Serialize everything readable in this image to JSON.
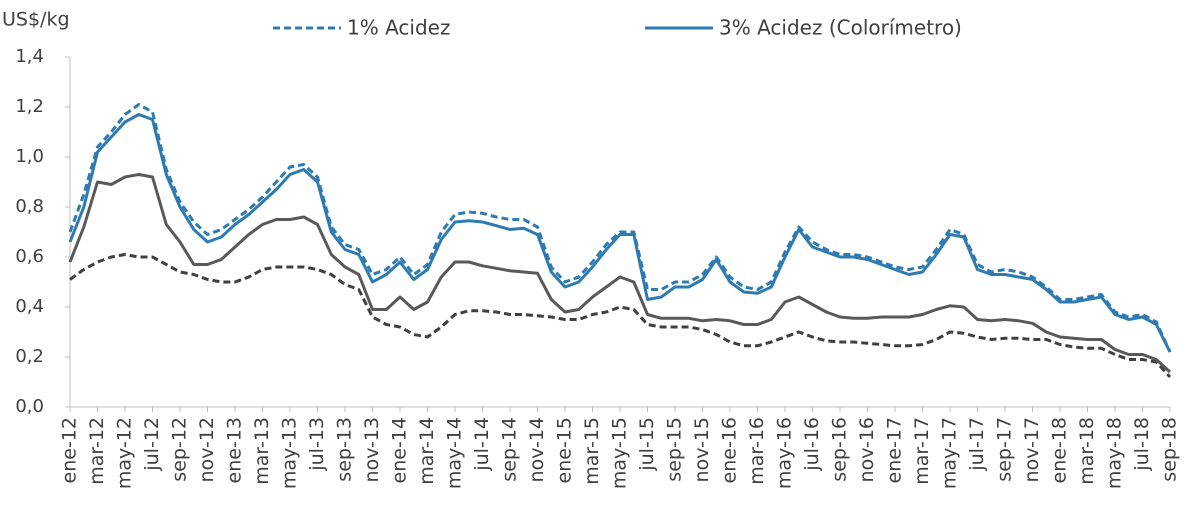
{
  "chart_data": {
    "type": "line",
    "y_label": "US$/kg",
    "categories": [
      "ene-12",
      null,
      "mar-12",
      null,
      "may-12",
      null,
      "jul-12",
      null,
      "sep-12",
      null,
      "nov-12",
      null,
      "ene-13",
      null,
      "mar-13",
      null,
      "may-13",
      null,
      "jul-13",
      null,
      "sep-13",
      null,
      "nov-13",
      null,
      "ene-14",
      null,
      "mar-14",
      null,
      "may-14",
      null,
      "jul-14",
      null,
      "sep-14",
      null,
      "nov-14",
      null,
      "ene-15",
      null,
      "mar-15",
      null,
      "may-15",
      null,
      "jul-15",
      null,
      "sep-15",
      null,
      "nov-15",
      null,
      "ene-16",
      null,
      "mar-16",
      null,
      "may-16",
      null,
      "jul-16",
      null,
      "sep-16",
      null,
      "nov-16",
      null,
      "ene-17",
      null,
      "mar-17",
      null,
      "may-17",
      null,
      "jul-17",
      null,
      "sep-17",
      null,
      "nov-17",
      null,
      "ene-18",
      null,
      "mar-18",
      null,
      "may-18",
      null,
      "jul-18",
      null,
      "sep-18"
    ],
    "series": [
      {
        "name": "1% Acidez",
        "color": "#2e7bb4",
        "dashed": true,
        "values": [
          0.7,
          0.85,
          1.04,
          1.1,
          1.17,
          1.21,
          1.18,
          0.95,
          0.82,
          0.74,
          0.69,
          0.71,
          0.75,
          0.79,
          0.84,
          0.9,
          0.96,
          0.97,
          0.92,
          0.72,
          0.65,
          0.63,
          0.53,
          0.55,
          0.6,
          0.53,
          0.57,
          0.7,
          0.77,
          0.78,
          0.775,
          0.76,
          0.75,
          0.75,
          0.72,
          0.56,
          0.5,
          0.52,
          0.58,
          0.65,
          0.7,
          0.7,
          0.47,
          0.47,
          0.5,
          0.5,
          0.53,
          0.6,
          0.52,
          0.48,
          0.47,
          0.5,
          0.62,
          0.72,
          0.66,
          0.63,
          0.61,
          0.61,
          0.6,
          0.58,
          0.56,
          0.55,
          0.56,
          0.63,
          0.71,
          0.69,
          0.57,
          0.54,
          0.55,
          0.54,
          0.52,
          0.48,
          0.43,
          0.43,
          0.44,
          0.45,
          0.38,
          0.36,
          0.37,
          0.34,
          0.22
        ]
      },
      {
        "name": "3% Acidez (Colorímetro)",
        "color": "#2e7bb4",
        "dashed": false,
        "values": [
          0.66,
          0.8,
          1.02,
          1.08,
          1.14,
          1.17,
          1.15,
          0.93,
          0.8,
          0.71,
          0.66,
          0.68,
          0.73,
          0.77,
          0.82,
          0.87,
          0.93,
          0.95,
          0.9,
          0.7,
          0.63,
          0.61,
          0.5,
          0.53,
          0.58,
          0.51,
          0.55,
          0.67,
          0.74,
          0.745,
          0.74,
          0.725,
          0.71,
          0.715,
          0.69,
          0.54,
          0.48,
          0.5,
          0.56,
          0.63,
          0.69,
          0.69,
          0.43,
          0.44,
          0.48,
          0.48,
          0.51,
          0.59,
          0.5,
          0.46,
          0.455,
          0.48,
          0.6,
          0.71,
          0.64,
          0.62,
          0.6,
          0.6,
          0.59,
          0.57,
          0.55,
          0.53,
          0.54,
          0.61,
          0.69,
          0.68,
          0.55,
          0.53,
          0.53,
          0.52,
          0.51,
          0.47,
          0.42,
          0.42,
          0.43,
          0.44,
          0.37,
          0.35,
          0.36,
          0.33,
          0.22
        ]
      },
      {
        "color": "#404040",
        "dashed": true,
        "values": [
          0.51,
          0.55,
          0.58,
          0.6,
          0.61,
          0.6,
          0.6,
          0.57,
          0.54,
          0.53,
          0.51,
          0.5,
          0.5,
          0.52,
          0.55,
          0.56,
          0.56,
          0.56,
          0.55,
          0.53,
          0.49,
          0.47,
          0.36,
          0.33,
          0.32,
          0.29,
          0.28,
          0.32,
          0.37,
          0.385,
          0.385,
          0.38,
          0.37,
          0.37,
          0.365,
          0.36,
          0.35,
          0.35,
          0.37,
          0.38,
          0.4,
          0.39,
          0.33,
          0.32,
          0.32,
          0.32,
          0.31,
          0.29,
          0.26,
          0.245,
          0.245,
          0.26,
          0.28,
          0.3,
          0.28,
          0.265,
          0.26,
          0.26,
          0.255,
          0.25,
          0.245,
          0.245,
          0.25,
          0.27,
          0.3,
          0.295,
          0.28,
          0.27,
          0.275,
          0.275,
          0.27,
          0.27,
          0.25,
          0.24,
          0.235,
          0.235,
          0.21,
          0.19,
          0.19,
          0.18,
          0.12
        ]
      },
      {
        "color": "#595959",
        "dashed": false,
        "values": [
          0.58,
          0.72,
          0.9,
          0.89,
          0.92,
          0.93,
          0.92,
          0.73,
          0.66,
          0.57,
          0.57,
          0.59,
          0.64,
          0.69,
          0.73,
          0.75,
          0.75,
          0.76,
          0.73,
          0.61,
          0.56,
          0.53,
          0.39,
          0.39,
          0.44,
          0.39,
          0.42,
          0.52,
          0.58,
          0.58,
          0.565,
          0.555,
          0.545,
          0.54,
          0.535,
          0.43,
          0.38,
          0.39,
          0.44,
          0.48,
          0.52,
          0.5,
          0.37,
          0.355,
          0.355,
          0.355,
          0.345,
          0.35,
          0.345,
          0.33,
          0.33,
          0.35,
          0.42,
          0.44,
          0.41,
          0.38,
          0.36,
          0.355,
          0.355,
          0.36,
          0.36,
          0.36,
          0.37,
          0.39,
          0.405,
          0.4,
          0.35,
          0.345,
          0.35,
          0.345,
          0.335,
          0.3,
          0.28,
          0.275,
          0.27,
          0.27,
          0.23,
          0.21,
          0.21,
          0.19,
          0.14
        ]
      }
    ],
    "ylim": [
      0,
      1.4
    ],
    "yticks": [
      {
        "value": 0,
        "label": "0,0"
      },
      {
        "value": 0.2,
        "label": "0,2"
      },
      {
        "value": 0.4,
        "label": "0,4"
      },
      {
        "value": 0.6,
        "label": "0,6"
      },
      {
        "value": 0.8,
        "label": "0,8"
      },
      {
        "value": 1.0,
        "label": "1,0"
      },
      {
        "value": 1.2,
        "label": "1,2"
      },
      {
        "value": 1.4,
        "label": "1,4"
      }
    ],
    "grid": false,
    "legend": "top"
  }
}
